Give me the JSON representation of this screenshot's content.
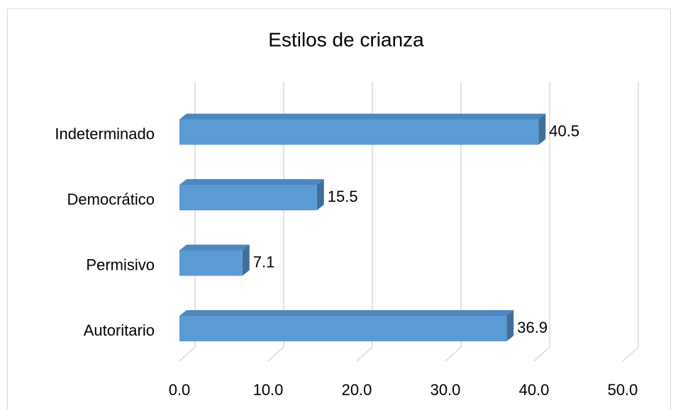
{
  "chart_data": {
    "type": "bar",
    "orientation": "horizontal",
    "three_d": true,
    "title": "Estilos de crianza",
    "categories": [
      "Autoritario",
      "Permisivo",
      "Democrático",
      "Indeterminado"
    ],
    "values": [
      36.9,
      7.1,
      15.5,
      40.5
    ],
    "color": "#5b9bd5",
    "xlim": [
      0,
      50
    ],
    "xticks": [
      {
        "value": 0,
        "label": "0.0"
      },
      {
        "value": 10,
        "label": "10.0"
      },
      {
        "value": 20,
        "label": "20.0"
      },
      {
        "value": 30,
        "label": "30.0"
      },
      {
        "value": 40,
        "label": "40.0"
      },
      {
        "value": 50,
        "label": "50.0"
      }
    ],
    "grid": true
  }
}
